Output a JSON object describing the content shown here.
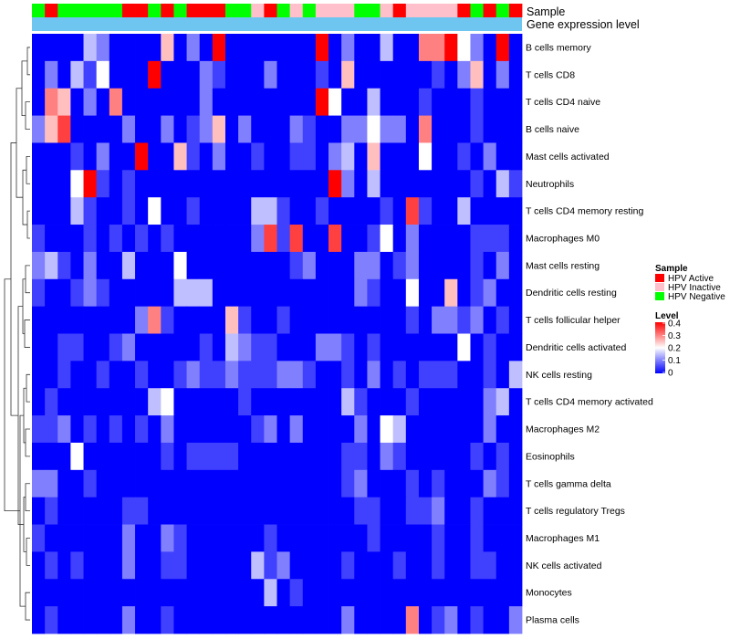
{
  "chart_data": {
    "type": "heatmap",
    "annotation_tracks": [
      "Sample",
      "Gene expression level"
    ],
    "sample_groups": [
      "Negative",
      "Active",
      "Negative",
      "Negative",
      "Negative",
      "Negative",
      "Negative",
      "Active",
      "Active",
      "Negative",
      "Active",
      "Negative",
      "Active",
      "Active",
      "Active",
      "Negative",
      "Negative",
      "Inactive",
      "Active",
      "Negative",
      "Inactive",
      "Negative",
      "Inactive",
      "Inactive",
      "Inactive",
      "Negative",
      "Negative",
      "Inactive",
      "Active",
      "Inactive",
      "Inactive",
      "Inactive",
      "Inactive",
      "Active",
      "Negative",
      "Active",
      "Negative",
      "Active"
    ],
    "gene_expression_color": "#6ec6f0",
    "rows": [
      "B cells memory",
      "T cells CD8",
      "T cells CD4 naive",
      "B cells naive",
      "Mast cells activated",
      "Neutrophils",
      "T cells CD4 memory resting",
      "Macrophages M0",
      "Mast cells resting",
      "Dendritic cells resting",
      "T cells follicular helper",
      "Dendritic cells activated",
      "NK cells resting",
      "T cells CD4 memory activated",
      "Macrophages M2",
      "Eosinophils",
      "T cells gamma delta",
      "T cells regulatory  Tregs",
      "Macrophages M1",
      "NK cells activated",
      "Monocytes",
      "Plasma cells"
    ],
    "values": [
      [
        0,
        0,
        0,
        0,
        0.15,
        0.1,
        0,
        0,
        0,
        0,
        0.25,
        0,
        0.1,
        0,
        0.4,
        0,
        0,
        0,
        0,
        0,
        0,
        0,
        0.4,
        0,
        0.1,
        0,
        0,
        0.15,
        0,
        0,
        0.3,
        0.3,
        0.4,
        0.2,
        0.1,
        0,
        0.4,
        0
      ],
      [
        0,
        0.1,
        0,
        0.15,
        0.05,
        0.2,
        0,
        0,
        0,
        0.4,
        0,
        0,
        0,
        0.1,
        0.05,
        0,
        0,
        0,
        0.1,
        0,
        0,
        0,
        0.05,
        0,
        0.25,
        0,
        0,
        0,
        0,
        0,
        0,
        0.05,
        0,
        0.1,
        0.25,
        0,
        0.1,
        0
      ],
      [
        0,
        0.3,
        0.25,
        0,
        0.1,
        0,
        0.3,
        0,
        0,
        0,
        0,
        0,
        0,
        0.1,
        0,
        0,
        0,
        0,
        0,
        0,
        0,
        0,
        0.4,
        0.2,
        0,
        0,
        0.15,
        0,
        0,
        0,
        0.05,
        0,
        0,
        0,
        0.05,
        0,
        0,
        0
      ],
      [
        0.1,
        0.25,
        0.35,
        0,
        0,
        0,
        0,
        0.1,
        0,
        0,
        0.1,
        0,
        0.05,
        0.1,
        0.25,
        0,
        0.1,
        0,
        0,
        0,
        0.1,
        0.05,
        0,
        0,
        0.1,
        0.1,
        0.2,
        0.1,
        0.1,
        0,
        0.3,
        0,
        0,
        0,
        0.05,
        0,
        0,
        0
      ],
      [
        0,
        0,
        0,
        0.05,
        0,
        0.1,
        0,
        0,
        0.4,
        0,
        0,
        0.25,
        0.05,
        0,
        0.1,
        0,
        0,
        0.05,
        0,
        0,
        0.05,
        0.05,
        0,
        0.1,
        0.15,
        0,
        0.25,
        0,
        0,
        0,
        0.2,
        0,
        0,
        0.05,
        0,
        0.1,
        0,
        0
      ],
      [
        0,
        0,
        0,
        0.2,
        0.4,
        0.05,
        0,
        0.05,
        0,
        0,
        0,
        0,
        0,
        0,
        0,
        0,
        0,
        0,
        0,
        0,
        0,
        0,
        0,
        0.4,
        0.1,
        0,
        0.15,
        0,
        0,
        0,
        0,
        0,
        0,
        0,
        0.05,
        0,
        0.15,
        0.05
      ],
      [
        0,
        0,
        0,
        0.15,
        0.05,
        0,
        0,
        0.05,
        0,
        0.2,
        0,
        0,
        0.05,
        0,
        0,
        0,
        0,
        0.15,
        0.15,
        0.05,
        0,
        0,
        0.05,
        0,
        0,
        0,
        0,
        0.05,
        0,
        0.35,
        0.05,
        0,
        0,
        0.15,
        0,
        0,
        0,
        0
      ],
      [
        0.05,
        0,
        0,
        0,
        0.05,
        0,
        0.05,
        0,
        0.05,
        0,
        0.05,
        0,
        0,
        0,
        0,
        0,
        0,
        0.1,
        0.35,
        0.05,
        0.35,
        0,
        0,
        0.35,
        0,
        0,
        0.05,
        0.2,
        0,
        0.1,
        0,
        0,
        0,
        0,
        0.05,
        0.05,
        0.05,
        0
      ],
      [
        0.1,
        0.15,
        0.05,
        0,
        0.1,
        0,
        0,
        0.15,
        0,
        0,
        0,
        0.2,
        0,
        0,
        0,
        0,
        0,
        0,
        0,
        0,
        0.05,
        0.1,
        0,
        0,
        0,
        0.1,
        0.1,
        0,
        0.05,
        0.1,
        0,
        0,
        0,
        0,
        0.05,
        0,
        0.1,
        0
      ],
      [
        0.05,
        0,
        0,
        0.05,
        0.1,
        0.05,
        0,
        0,
        0,
        0,
        0,
        0.15,
        0.15,
        0.15,
        0,
        0,
        0,
        0,
        0,
        0,
        0,
        0,
        0,
        0,
        0,
        0.1,
        0.05,
        0,
        0,
        0.2,
        0,
        0,
        0.25,
        0,
        0.05,
        0.1,
        0,
        0
      ],
      [
        0,
        0,
        0,
        0,
        0,
        0,
        0,
        0,
        0.1,
        0.3,
        0.05,
        0,
        0,
        0,
        0,
        0.25,
        0.05,
        0,
        0,
        0.05,
        0,
        0,
        0,
        0,
        0,
        0,
        0,
        0,
        0,
        0.05,
        0,
        0.1,
        0.1,
        0.05,
        0.1,
        0,
        0.05,
        0
      ],
      [
        0,
        0,
        0.05,
        0.05,
        0,
        0,
        0.05,
        0.1,
        0,
        0,
        0,
        0,
        0,
        0.05,
        0,
        0.15,
        0.1,
        0.05,
        0.05,
        0,
        0,
        0,
        0.1,
        0.1,
        0.05,
        0,
        0.05,
        0,
        0,
        0,
        0,
        0,
        0,
        0.2,
        0,
        0.05,
        0,
        0
      ],
      [
        0,
        0,
        0.05,
        0,
        0,
        0.05,
        0,
        0,
        0.05,
        0,
        0,
        0.05,
        0.1,
        0.05,
        0.05,
        0.1,
        0.05,
        0.05,
        0.05,
        0.1,
        0.1,
        0.05,
        0,
        0,
        0.05,
        0,
        0.1,
        0,
        0.05,
        0,
        0.05,
        0.05,
        0.05,
        0,
        0,
        0.05,
        0,
        0.15
      ],
      [
        0,
        0.05,
        0,
        0,
        0,
        0,
        0,
        0,
        0,
        0.15,
        0.2,
        0,
        0,
        0,
        0,
        0,
        0.05,
        0,
        0,
        0,
        0,
        0,
        0,
        0,
        0.15,
        0.05,
        0,
        0,
        0,
        0.05,
        0,
        0,
        0,
        0,
        0,
        0.1,
        0.15,
        0
      ],
      [
        0.05,
        0.05,
        0.1,
        0,
        0.05,
        0,
        0.05,
        0,
        0.05,
        0,
        0.1,
        0,
        0,
        0,
        0,
        0,
        0,
        0.05,
        0.1,
        0,
        0.1,
        0,
        0,
        0,
        0,
        0.1,
        0,
        0.2,
        0.15,
        0,
        0,
        0,
        0,
        0,
        0,
        0.1,
        0,
        0
      ],
      [
        0,
        0,
        0,
        0.2,
        0,
        0,
        0,
        0,
        0,
        0,
        0.05,
        0,
        0.05,
        0.05,
        0.05,
        0.05,
        0,
        0,
        0,
        0,
        0,
        0,
        0,
        0,
        0.05,
        0.05,
        0,
        0.1,
        0.05,
        0,
        0,
        0,
        0,
        0,
        0.05,
        0,
        0.05,
        0
      ],
      [
        0.1,
        0.1,
        0,
        0,
        0.05,
        0,
        0,
        0,
        0,
        0,
        0,
        0,
        0,
        0,
        0,
        0,
        0,
        0,
        0,
        0,
        0,
        0,
        0,
        0,
        0.05,
        0.1,
        0,
        0,
        0,
        0.05,
        0,
        0.05,
        0,
        0,
        0,
        0.1,
        0.05,
        0
      ],
      [
        0,
        0.05,
        0,
        0,
        0,
        0,
        0,
        0.05,
        0.05,
        0,
        0,
        0,
        0,
        0,
        0,
        0,
        0,
        0,
        0,
        0,
        0,
        0,
        0,
        0,
        0,
        0.05,
        0.05,
        0,
        0,
        0.05,
        0.05,
        0.1,
        0,
        0,
        0.05,
        0,
        0,
        0
      ],
      [
        0.05,
        0,
        0,
        0,
        0,
        0,
        0,
        0.1,
        0,
        0,
        0.1,
        0.05,
        0,
        0,
        0,
        0,
        0,
        0,
        0.05,
        0,
        0,
        0,
        0,
        0,
        0,
        0,
        0.05,
        0,
        0,
        0,
        0,
        0.05,
        0,
        0,
        0.05,
        0,
        0,
        0
      ],
      [
        0,
        0.05,
        0,
        0.05,
        0,
        0,
        0,
        0.1,
        0,
        0,
        0.05,
        0.05,
        0,
        0,
        0,
        0,
        0,
        0.15,
        0.05,
        0.1,
        0,
        0,
        0,
        0,
        0.05,
        0,
        0,
        0,
        0.05,
        0,
        0,
        0.05,
        0,
        0,
        0.05,
        0.05,
        0,
        0
      ],
      [
        0,
        0,
        0,
        0,
        0,
        0,
        0,
        0,
        0,
        0,
        0,
        0,
        0,
        0,
        0,
        0,
        0,
        0,
        0.15,
        0,
        0.05,
        0,
        0,
        0,
        0,
        0,
        0,
        0,
        0,
        0,
        0,
        0,
        0,
        0,
        0,
        0,
        0,
        0
      ],
      [
        0,
        0.05,
        0,
        0,
        0,
        0,
        0,
        0.1,
        0,
        0,
        0.05,
        0,
        0,
        0,
        0,
        0,
        0,
        0,
        0,
        0,
        0,
        0,
        0,
        0,
        0.1,
        0,
        0,
        0,
        0,
        0.3,
        0,
        0.05,
        0.1,
        0,
        0.05,
        0,
        0,
        0.1
      ]
    ],
    "legends": {
      "sample": {
        "title": "Sample",
        "items": [
          {
            "label": "HPV Active",
            "color": "#ff0000"
          },
          {
            "label": "HPV Inactive",
            "color": "#ffc0cb"
          },
          {
            "label": "HPV Negative",
            "color": "#00ff00"
          }
        ]
      },
      "level": {
        "title": "Level",
        "ticks": [
          "0.4",
          "0.3",
          "0.2",
          "0.1",
          "0"
        ],
        "range": [
          0,
          0.4
        ],
        "colors": [
          "#0000ff",
          "#ffffff",
          "#ff0000"
        ]
      }
    }
  }
}
